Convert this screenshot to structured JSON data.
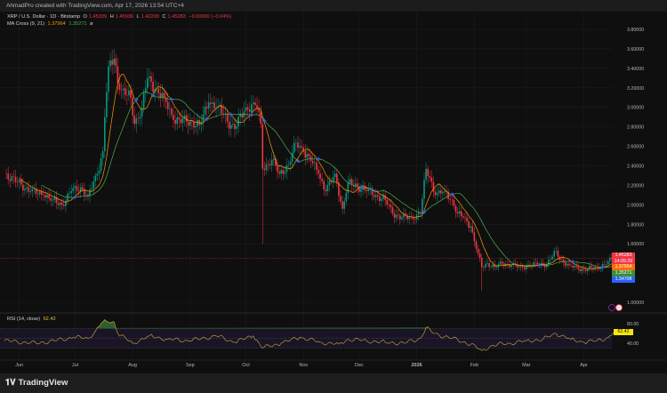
{
  "header": {
    "credit": "AhmadPro created with TradingView.com, Apr 17, 2026 13:54 UTC+4"
  },
  "legend": {
    "symbol": "XRP / U.S. Dollar · 1D · Bitstamp",
    "o_label": "O",
    "o": "1.45339",
    "h_label": "H",
    "h": "1.45936",
    "l_label": "L",
    "l": "1.42299",
    "c_label": "C",
    "c": "1.45283",
    "change": "−0.00060 (−0.04%)",
    "ma_title": "MA Cross (9, 21)",
    "ma_fast": "1.37964",
    "ma_slow": "1.35271",
    "ma_icon": "eye-off-icon"
  },
  "rsi": {
    "title": "RSI (14, close)",
    "value": "62.42",
    "levels_labels": [
      "80.00",
      "40.00"
    ]
  },
  "price_labels": {
    "last": "1.45283",
    "countdown": "14:05:29",
    "ma_fast": "1.37964",
    "ma_slow": "1.35271",
    "other": "1.34708"
  },
  "footer": {
    "brand": "TradingView"
  },
  "colors": {
    "up": "#089981",
    "down": "#f23645",
    "ma_fast": "#ff9800",
    "ma_slow": "#4caf50",
    "cross": "#2962ff",
    "rsi": "#c9b03a",
    "other": "#2962ff"
  },
  "chart_data": {
    "type": "candlestick",
    "title": "XRP / U.S. Dollar · 1D · Bitstamp",
    "y_ticks": [
      "3.80000",
      "3.60000",
      "3.40000",
      "3.20000",
      "3.00000",
      "2.80000",
      "2.60000",
      "2.40000",
      "2.20000",
      "2.00000",
      "1.80000",
      "1.60000",
      "1.00000"
    ],
    "ylim": [
      1.0,
      3.8
    ],
    "xlim": [
      "2025-05-24",
      "2026-04-17"
    ],
    "x_ticks": [
      {
        "label": "Jun",
        "date": "2025-06-01"
      },
      {
        "label": "Jul",
        "date": "2025-07-01"
      },
      {
        "label": "Aug",
        "date": "2025-08-01"
      },
      {
        "label": "Sep",
        "date": "2025-09-01"
      },
      {
        "label": "Oct",
        "date": "2025-10-01"
      },
      {
        "label": "Nov",
        "date": "2025-11-01"
      },
      {
        "label": "Dec",
        "date": "2025-12-01"
      },
      {
        "label": "2026",
        "date": "2026-01-01"
      },
      {
        "label": "Feb",
        "date": "2026-02-01"
      },
      {
        "label": "Mar",
        "date": "2026-03-01"
      },
      {
        "label": "Apr",
        "date": "2026-04-01"
      }
    ],
    "close_series": [
      [
        "2025-05-24",
        2.32
      ],
      [
        "2025-05-31",
        2.23
      ],
      [
        "2025-06-07",
        2.14
      ],
      [
        "2025-06-14",
        2.1
      ],
      [
        "2025-06-19",
        2.05
      ],
      [
        "2025-06-24",
        2.0
      ],
      [
        "2025-06-29",
        2.14
      ],
      [
        "2025-07-04",
        2.18
      ],
      [
        "2025-07-08",
        2.09
      ],
      [
        "2025-07-13",
        2.32
      ],
      [
        "2025-07-16",
        2.55
      ],
      [
        "2025-07-17",
        2.9
      ],
      [
        "2025-07-19",
        3.42
      ],
      [
        "2025-07-22",
        3.5
      ],
      [
        "2025-07-25",
        3.18
      ],
      [
        "2025-07-31",
        3.1
      ],
      [
        "2025-08-02",
        2.83
      ],
      [
        "2025-08-06",
        2.99
      ],
      [
        "2025-08-09",
        3.3
      ],
      [
        "2025-08-13",
        3.19
      ],
      [
        "2025-08-18",
        3.1
      ],
      [
        "2025-08-23",
        2.87
      ],
      [
        "2025-09-02",
        2.85
      ],
      [
        "2025-09-06",
        2.82
      ],
      [
        "2025-09-11",
        3.05
      ],
      [
        "2025-09-16",
        3.01
      ],
      [
        "2025-09-23",
        2.82
      ],
      [
        "2025-09-25",
        2.78
      ],
      [
        "2025-09-30",
        2.96
      ],
      [
        "2025-10-05",
        3.05
      ],
      [
        "2025-10-07",
        2.99
      ],
      [
        "2025-10-09",
        2.83
      ],
      [
        "2025-10-10",
        2.37
      ],
      [
        "2025-10-15",
        2.46
      ],
      [
        "2025-10-19",
        2.32
      ],
      [
        "2025-10-24",
        2.41
      ],
      [
        "2025-10-28",
        2.64
      ],
      [
        "2025-11-01",
        2.55
      ],
      [
        "2025-11-05",
        2.45
      ],
      [
        "2025-11-09",
        2.32
      ],
      [
        "2025-11-13",
        2.14
      ],
      [
        "2025-11-18",
        2.32
      ],
      [
        "2025-11-22",
        1.96
      ],
      [
        "2025-11-25",
        2.23
      ],
      [
        "2025-11-30",
        2.19
      ],
      [
        "2025-12-05",
        2.14
      ],
      [
        "2025-12-10",
        2.1
      ],
      [
        "2025-12-15",
        2.05
      ],
      [
        "2025-12-19",
        1.91
      ],
      [
        "2025-12-24",
        1.87
      ],
      [
        "2025-12-29",
        1.87
      ],
      [
        "2026-01-03",
        1.91
      ],
      [
        "2026-01-06",
        2.37
      ],
      [
        "2026-01-08",
        2.28
      ],
      [
        "2026-01-11",
        2.1
      ],
      [
        "2026-01-16",
        2.14
      ],
      [
        "2026-01-20",
        2.05
      ],
      [
        "2026-01-23",
        1.91
      ],
      [
        "2026-01-26",
        1.87
      ],
      [
        "2026-01-30",
        1.78
      ],
      [
        "2026-02-02",
        1.55
      ],
      [
        "2026-02-05",
        1.36
      ],
      [
        "2026-02-08",
        1.4
      ],
      [
        "2026-02-12",
        1.36
      ],
      [
        "2026-02-16",
        1.4
      ],
      [
        "2026-02-21",
        1.38
      ],
      [
        "2026-02-26",
        1.36
      ],
      [
        "2026-03-03",
        1.38
      ],
      [
        "2026-03-07",
        1.39
      ],
      [
        "2026-03-12",
        1.39
      ],
      [
        "2026-03-17",
        1.53
      ],
      [
        "2026-03-19",
        1.44
      ],
      [
        "2026-03-24",
        1.38
      ],
      [
        "2026-03-29",
        1.34
      ],
      [
        "2026-04-03",
        1.34
      ],
      [
        "2026-04-08",
        1.36
      ],
      [
        "2026-04-12",
        1.39
      ],
      [
        "2026-04-17",
        1.45283
      ]
    ],
    "extreme_wicks": [
      [
        "2025-10-10",
        1.6
      ],
      [
        "2026-02-05",
        1.12
      ]
    ],
    "rsi_series": [
      [
        "2025-05-24",
        45
      ],
      [
        "2025-06-10",
        40
      ],
      [
        "2025-06-20",
        45
      ],
      [
        "2025-06-30",
        52
      ],
      [
        "2025-07-08",
        50
      ],
      [
        "2025-07-12",
        65
      ],
      [
        "2025-07-15",
        80
      ],
      [
        "2025-07-18",
        85
      ],
      [
        "2025-07-22",
        84
      ],
      [
        "2025-07-24",
        60
      ],
      [
        "2025-08-01",
        40
      ],
      [
        "2025-08-10",
        55
      ],
      [
        "2025-08-20",
        48
      ],
      [
        "2025-09-01",
        45
      ],
      [
        "2025-09-15",
        55
      ],
      [
        "2025-09-25",
        42
      ],
      [
        "2025-10-05",
        55
      ],
      [
        "2025-10-10",
        30
      ],
      [
        "2025-10-20",
        40
      ],
      [
        "2025-10-30",
        52
      ],
      [
        "2025-11-10",
        42
      ],
      [
        "2025-11-20",
        38
      ],
      [
        "2025-11-25",
        48
      ],
      [
        "2025-12-05",
        45
      ],
      [
        "2025-12-15",
        42
      ],
      [
        "2025-12-25",
        40
      ],
      [
        "2026-01-03",
        50
      ],
      [
        "2026-01-06",
        72
      ],
      [
        "2026-01-10",
        60
      ],
      [
        "2026-01-20",
        50
      ],
      [
        "2026-01-30",
        38
      ],
      [
        "2026-02-05",
        25
      ],
      [
        "2026-02-10",
        35
      ],
      [
        "2026-02-20",
        40
      ],
      [
        "2026-03-01",
        45
      ],
      [
        "2026-03-10",
        48
      ],
      [
        "2026-03-17",
        60
      ],
      [
        "2026-03-25",
        48
      ],
      [
        "2026-04-01",
        42
      ],
      [
        "2026-04-08",
        45
      ],
      [
        "2026-04-14",
        52
      ],
      [
        "2026-04-17",
        62.42
      ]
    ],
    "rsi_levels": [
      70,
      50,
      30
    ],
    "ma_periods": [
      9,
      21
    ]
  }
}
